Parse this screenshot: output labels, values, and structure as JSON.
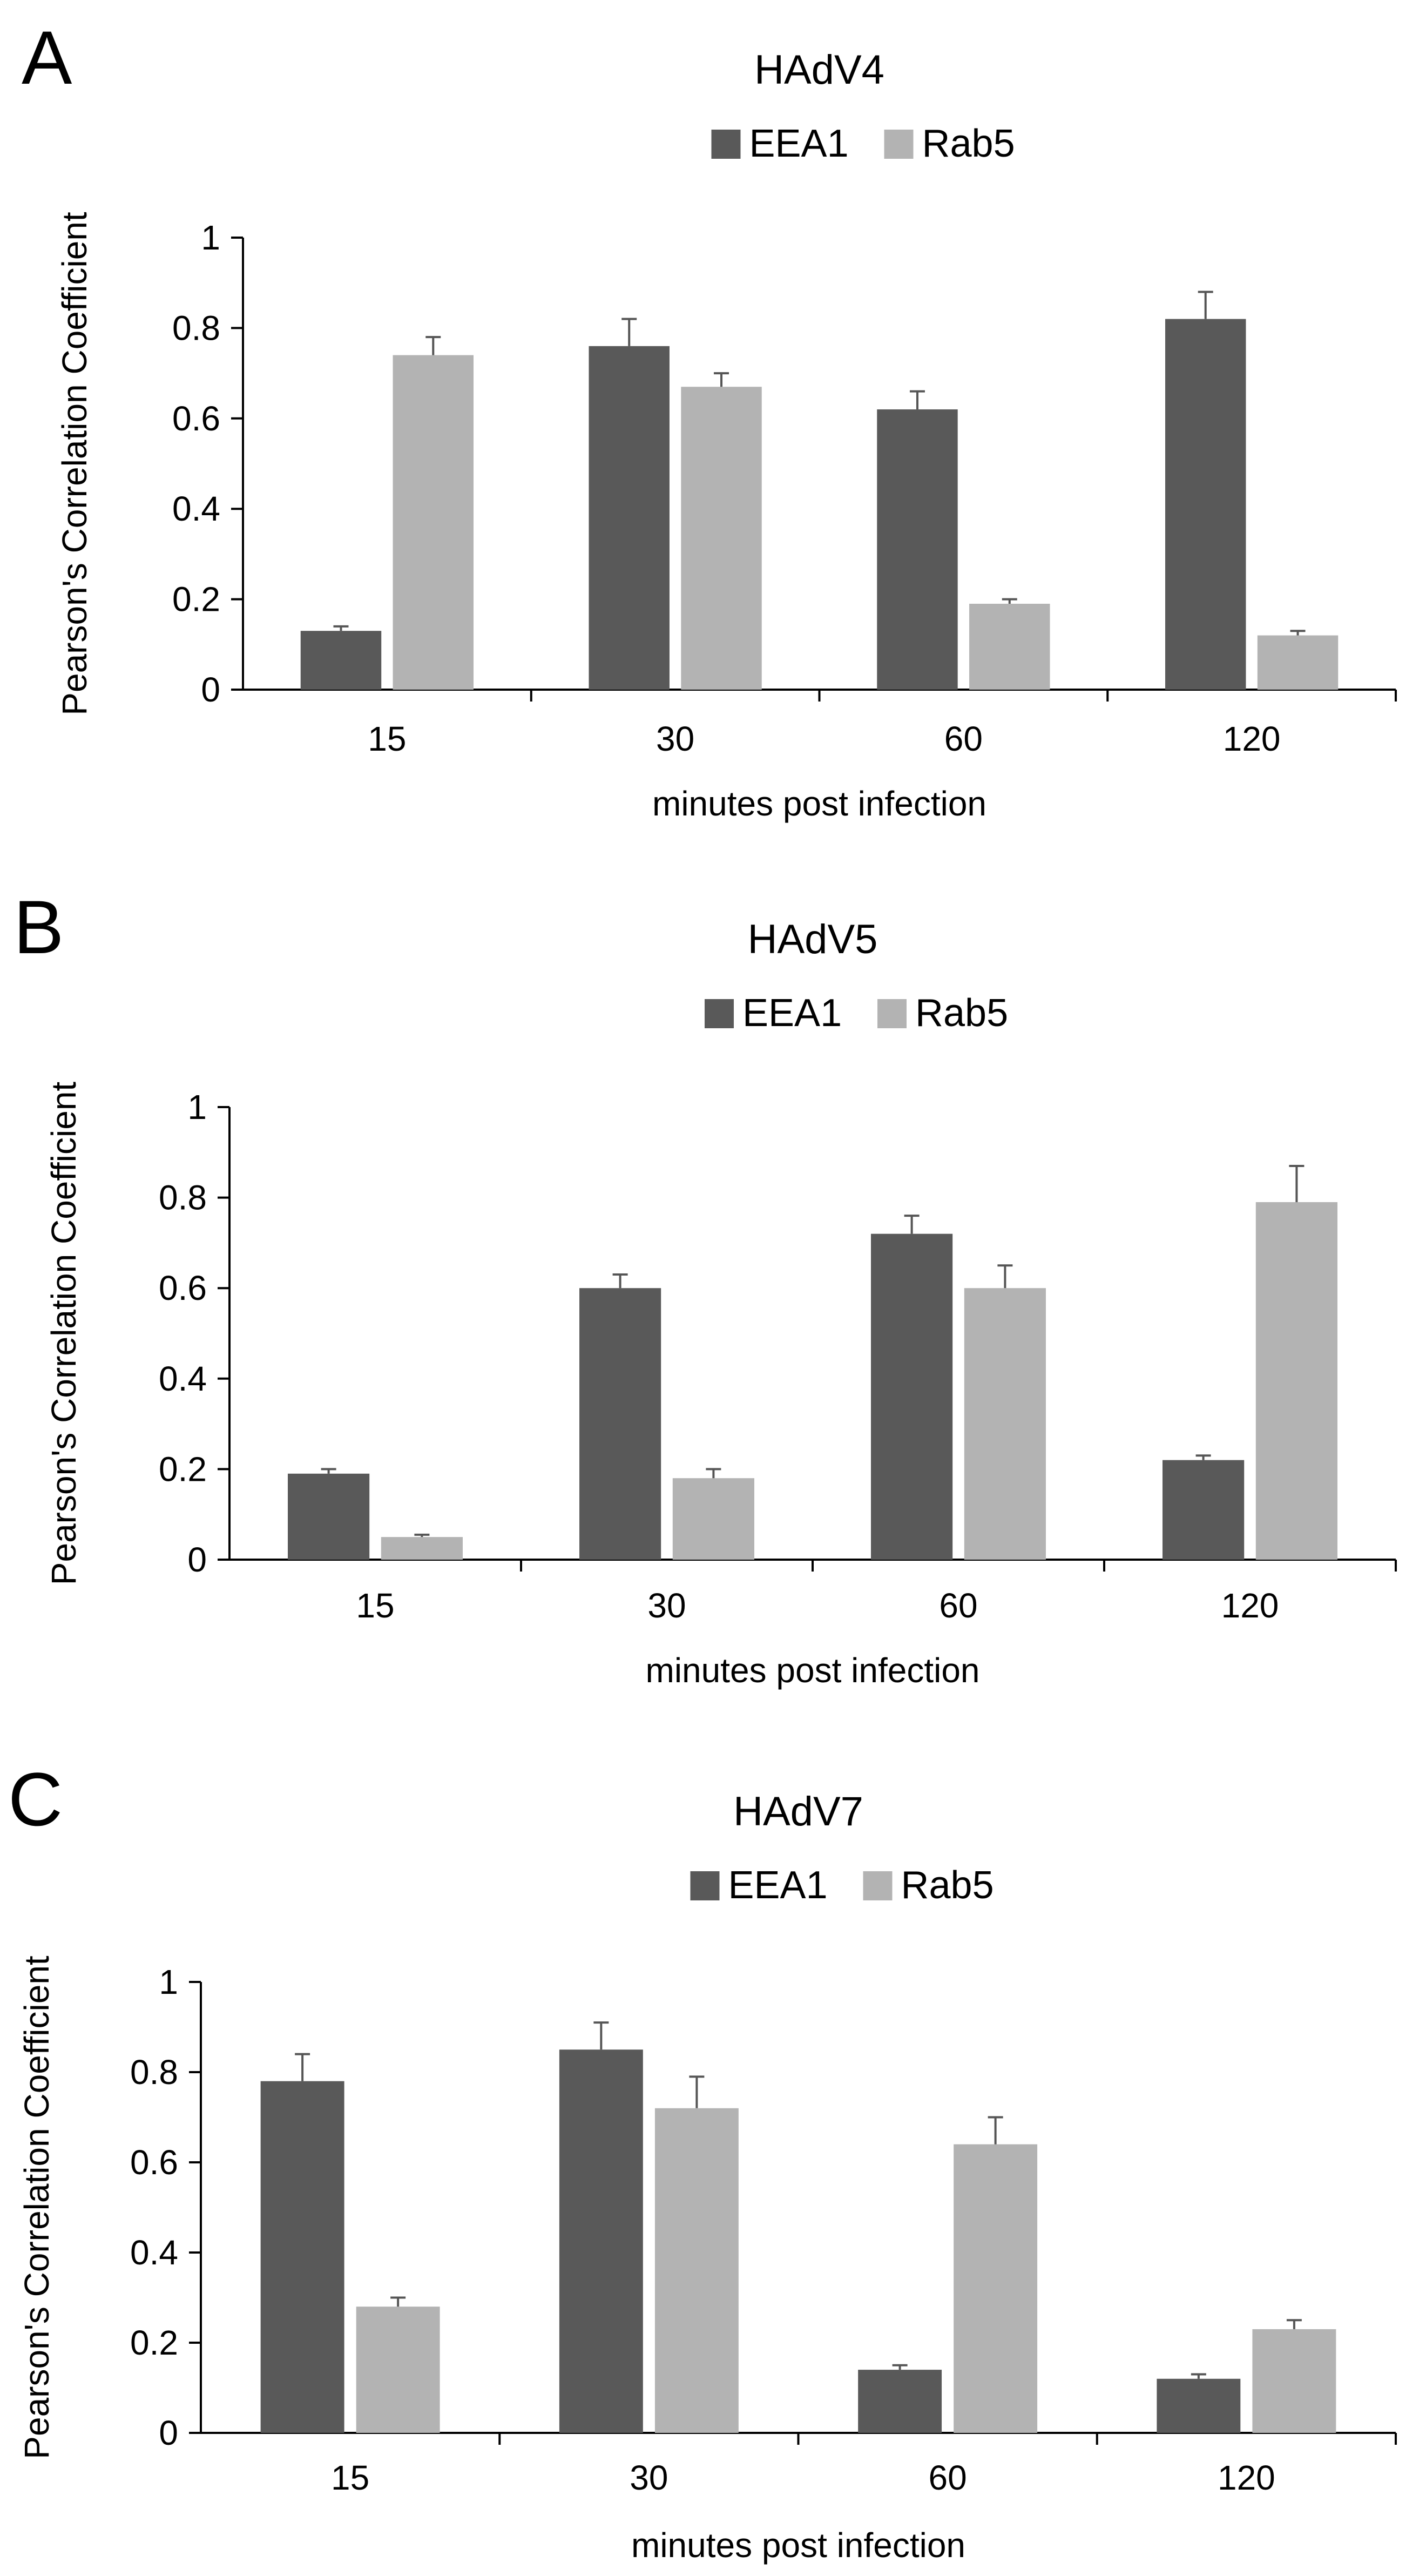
{
  "colors": {
    "EEA1": "#595959",
    "Rab5": "#b3b3b3",
    "axis": "#000000",
    "error": "#555555"
  },
  "chart_data": [
    {
      "type": "bar",
      "panel": "A",
      "title": "HAdV4",
      "legend": [
        "EEA1",
        "Rab5"
      ],
      "legend_position": "top-center",
      "categories": [
        "15",
        "30",
        "60",
        "120"
      ],
      "series": [
        {
          "name": "EEA1",
          "values": [
            0.13,
            0.76,
            0.62,
            0.82
          ],
          "errors": [
            0.01,
            0.06,
            0.04,
            0.06
          ]
        },
        {
          "name": "Rab5",
          "values": [
            0.74,
            0.67,
            0.19,
            0.12
          ],
          "errors": [
            0.04,
            0.03,
            0.01,
            0.01
          ]
        }
      ],
      "xlabel": "minutes post infection",
      "ylabel": "Pearson's Correlation Coefficient",
      "ylim": [
        0,
        1
      ],
      "yticks": [
        "0",
        "0.2",
        "0.4",
        "0.6",
        "0.8",
        "1"
      ],
      "grid": false
    },
    {
      "type": "bar",
      "panel": "B",
      "title": "HAdV5",
      "legend": [
        "EEA1",
        "Rab5"
      ],
      "legend_position": "top-center",
      "categories": [
        "15",
        "30",
        "60",
        "120"
      ],
      "series": [
        {
          "name": "EEA1",
          "values": [
            0.19,
            0.6,
            0.72,
            0.22
          ],
          "errors": [
            0.01,
            0.03,
            0.04,
            0.01
          ]
        },
        {
          "name": "Rab5",
          "values": [
            0.05,
            0.18,
            0.6,
            0.79
          ],
          "errors": [
            0.005,
            0.02,
            0.05,
            0.08
          ]
        }
      ],
      "xlabel": "minutes post infection",
      "ylabel": "Pearson's Correlation Coefficient",
      "ylim": [
        0,
        1
      ],
      "yticks": [
        "0",
        "0.2",
        "0.4",
        "0.6",
        "0.8",
        "1"
      ],
      "grid": false
    },
    {
      "type": "bar",
      "panel": "C",
      "title": "HAdV7",
      "legend": [
        "EEA1",
        "Rab5"
      ],
      "legend_position": "top-center",
      "categories": [
        "15",
        "30",
        "60",
        "120"
      ],
      "series": [
        {
          "name": "EEA1",
          "values": [
            0.78,
            0.85,
            0.14,
            0.12
          ],
          "errors": [
            0.06,
            0.06,
            0.01,
            0.01
          ]
        },
        {
          "name": "Rab5",
          "values": [
            0.28,
            0.72,
            0.64,
            0.23
          ],
          "errors": [
            0.02,
            0.07,
            0.06,
            0.02
          ]
        }
      ],
      "xlabel": "minutes post infection",
      "ylabel": "Pearson's Correlation Coefficient",
      "ylim": [
        0,
        1
      ],
      "yticks": [
        "0",
        "0.2",
        "0.4",
        "0.6",
        "0.8",
        "1"
      ],
      "grid": false
    }
  ]
}
